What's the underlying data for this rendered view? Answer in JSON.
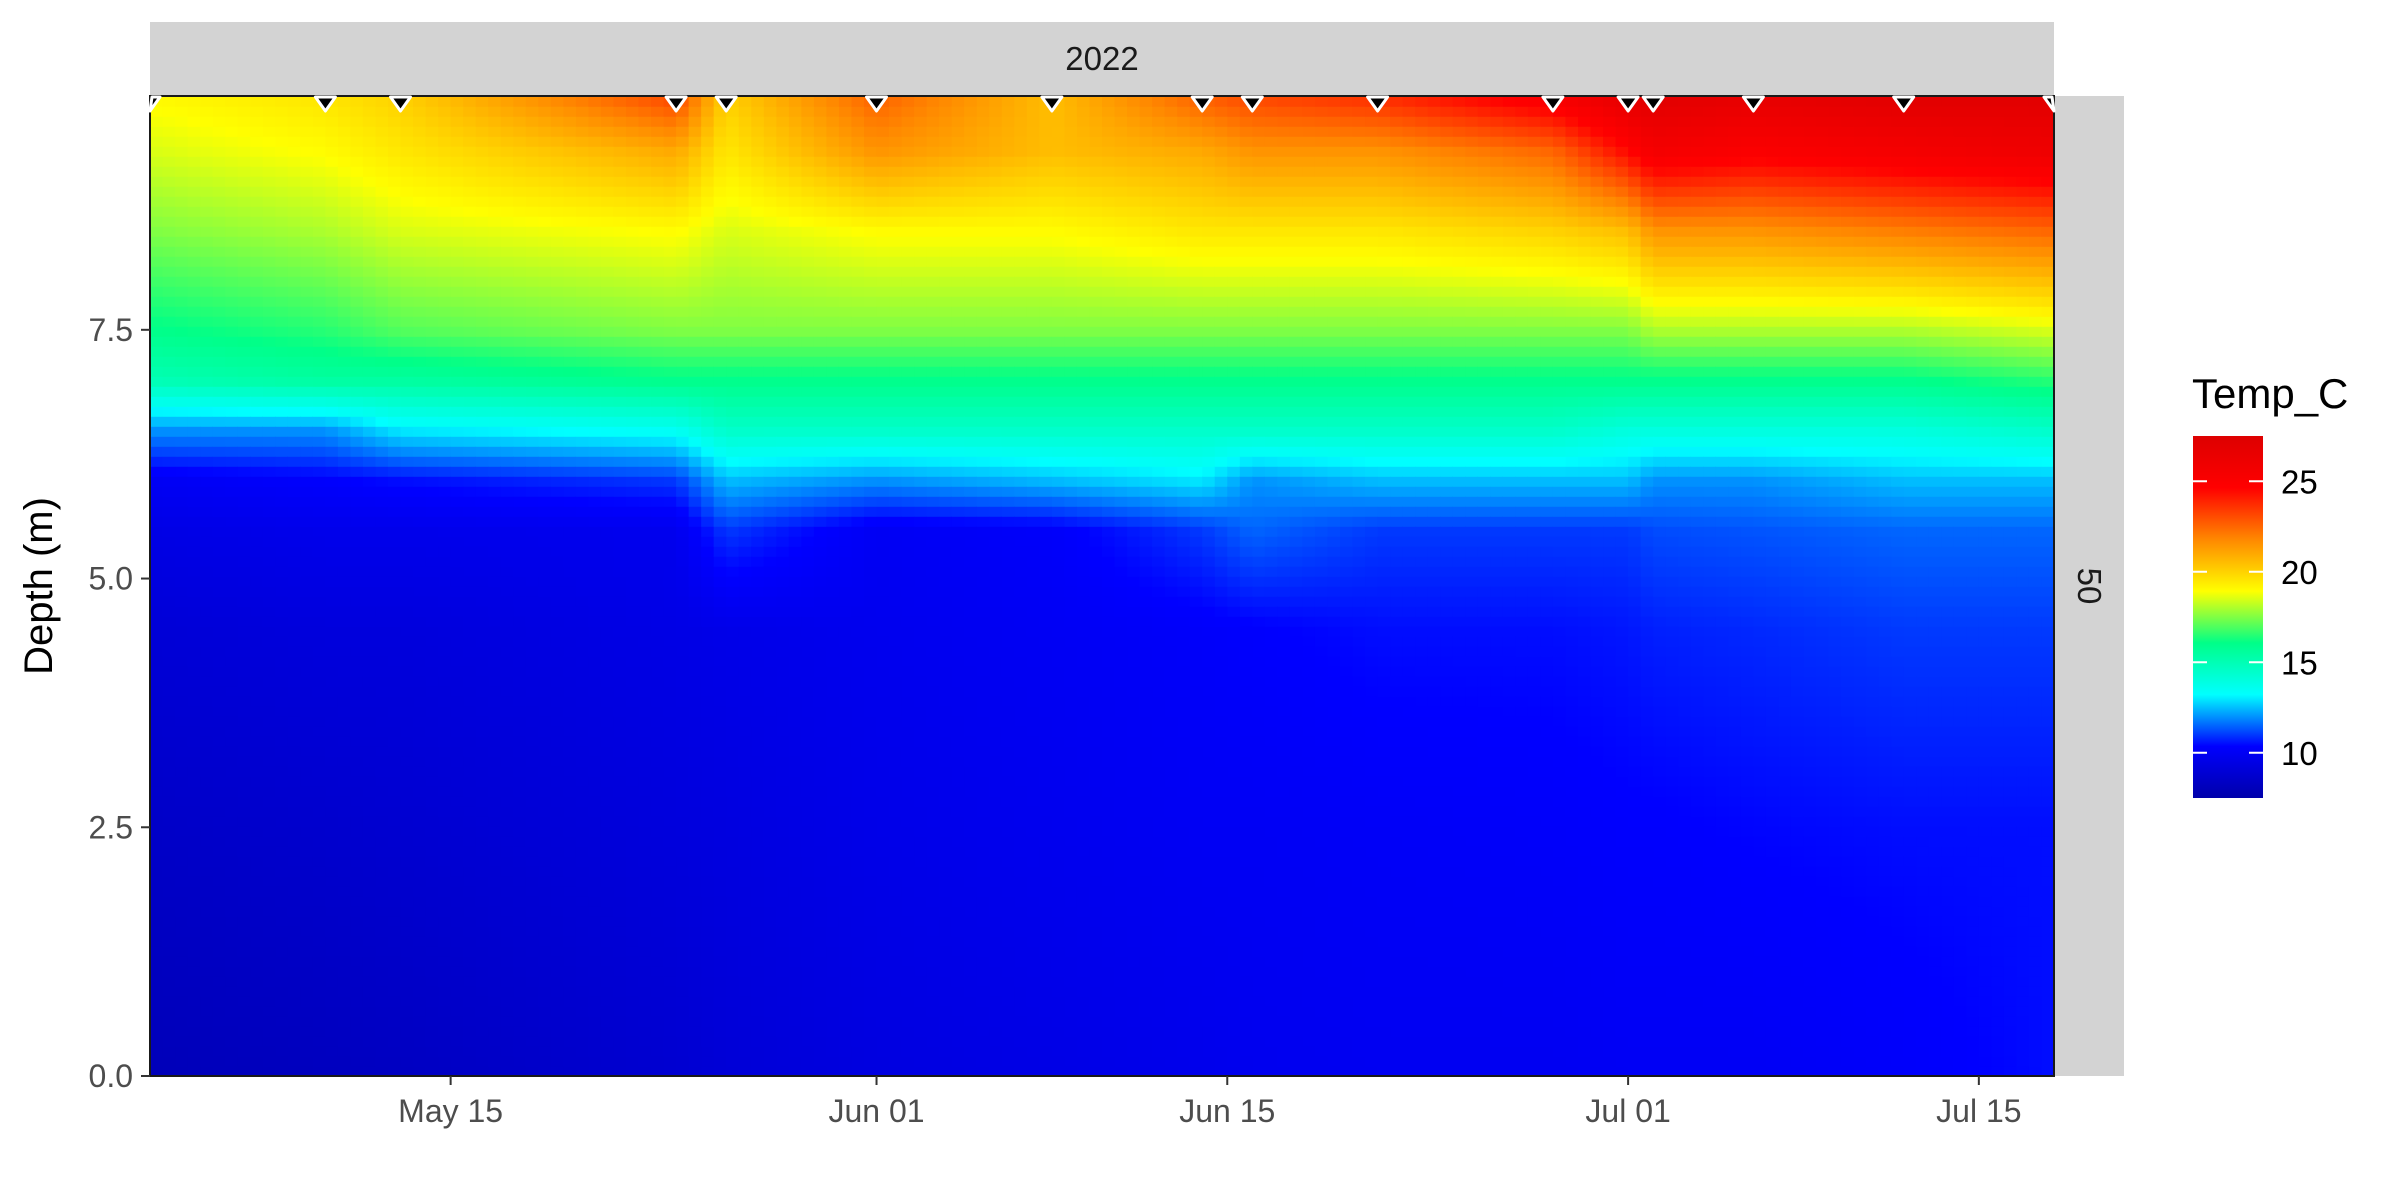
{
  "chart_data": {
    "type": "heatmap",
    "title": "",
    "facet_top_label": "2022",
    "facet_right_label": "50",
    "xlabel": "",
    "ylabel": "Depth (m)",
    "x_range_days": [
      123,
      199
    ],
    "ylim": [
      0,
      9.85
    ],
    "x_ticks": [
      {
        "label": "May 15",
        "day": 135
      },
      {
        "label": "Jun 01",
        "day": 152
      },
      {
        "label": "Jun 15",
        "day": 166
      },
      {
        "label": "Jul 01",
        "day": 182
      },
      {
        "label": "Jul 15",
        "day": 196
      }
    ],
    "y_ticks": [
      {
        "label": "0.0",
        "value": 0
      },
      {
        "label": "2.5",
        "value": 2.5
      },
      {
        "label": "5.0",
        "value": 5
      },
      {
        "label": "7.5",
        "value": 7.5
      }
    ],
    "sample_days": [
      123,
      130,
      133,
      144,
      146,
      152,
      159,
      165,
      167,
      172,
      179,
      182,
      183,
      187,
      193,
      199
    ],
    "legend": {
      "title": "Temp_C",
      "position": "right",
      "min": 7.5,
      "max": 27.5,
      "ticks": [
        {
          "label": "25",
          "value": 25
        },
        {
          "label": "20",
          "value": 20
        },
        {
          "label": "15",
          "value": 15
        },
        {
          "label": "10",
          "value": 10
        }
      ],
      "colors": [
        "#0000aa",
        "#0000ff",
        "#00ffff",
        "#00ff88",
        "#ffff00",
        "#ff8800",
        "#ff0000",
        "#dd0000"
      ]
    },
    "depths_m": [
      0,
      2.5,
      4.5,
      5.5,
      6,
      6.5,
      7,
      7.5,
      8.5,
      9.3,
      9.8
    ],
    "profiles": [
      {
        "day": 123,
        "temps": [
          8.0,
          8.5,
          9.0,
          9.5,
          10.0,
          12.0,
          15.0,
          16.0,
          17.5,
          18.5,
          19.0
        ]
      },
      {
        "day": 130,
        "temps": [
          8.2,
          8.7,
          9.2,
          9.7,
          10.3,
          12.0,
          15.5,
          16.5,
          18.0,
          19.0,
          19.5
        ]
      },
      {
        "day": 133,
        "temps": [
          8.3,
          8.8,
          9.2,
          9.7,
          10.5,
          13.0,
          15.5,
          17.0,
          18.5,
          19.5,
          20.0
        ]
      },
      {
        "day": 144,
        "temps": [
          8.8,
          9.2,
          9.5,
          9.8,
          11.0,
          13.5,
          16.0,
          17.5,
          19.0,
          21.0,
          23.0
        ]
      },
      {
        "day": 146,
        "temps": [
          9.0,
          9.3,
          9.6,
          11.0,
          12.5,
          14.5,
          16.0,
          17.5,
          18.5,
          19.5,
          20.0
        ]
      },
      {
        "day": 152,
        "temps": [
          9.3,
          9.6,
          9.8,
          10.0,
          12.0,
          14.5,
          16.0,
          17.5,
          19.0,
          21.5,
          22.5
        ]
      },
      {
        "day": 159,
        "temps": [
          9.5,
          9.8,
          10.0,
          10.2,
          12.5,
          14.5,
          16.0,
          17.5,
          19.0,
          20.5,
          20.5
        ]
      },
      {
        "day": 165,
        "temps": [
          9.7,
          10.0,
          10.2,
          11.0,
          13.0,
          14.5,
          16.0,
          17.5,
          19.5,
          21.0,
          22.5
        ]
      },
      {
        "day": 167,
        "temps": [
          9.8,
          10.0,
          10.3,
          11.5,
          12.0,
          14.5,
          16.0,
          17.5,
          19.5,
          21.5,
          23.0
        ]
      },
      {
        "day": 172,
        "temps": [
          9.9,
          10.1,
          10.5,
          11.0,
          12.5,
          14.5,
          16.0,
          17.5,
          19.5,
          21.5,
          23.5
        ]
      },
      {
        "day": 179,
        "temps": [
          9.9,
          10.2,
          10.5,
          11.0,
          12.5,
          14.5,
          16.0,
          17.5,
          20.0,
          22.5,
          25.0
        ]
      },
      {
        "day": 182,
        "temps": [
          10.0,
          10.3,
          10.6,
          11.0,
          12.5,
          14.0,
          16.0,
          17.5,
          20.5,
          24.5,
          26.5
        ]
      },
      {
        "day": 183,
        "temps": [
          10.0,
          10.3,
          10.7,
          11.2,
          12.0,
          14.0,
          16.0,
          18.0,
          21.5,
          25.5,
          27.0
        ]
      },
      {
        "day": 187,
        "temps": [
          10.0,
          10.4,
          10.8,
          11.3,
          12.0,
          14.0,
          16.0,
          18.0,
          21.5,
          25.0,
          26.5
        ]
      },
      {
        "day": 193,
        "temps": [
          10.2,
          10.5,
          11.0,
          11.5,
          12.5,
          14.0,
          16.0,
          18.0,
          22.0,
          25.5,
          27.0
        ]
      },
      {
        "day": 199,
        "temps": [
          10.5,
          10.5,
          11.0,
          11.5,
          12.5,
          14.5,
          16.5,
          18.5,
          22.5,
          26.0,
          27.0
        ]
      }
    ]
  }
}
